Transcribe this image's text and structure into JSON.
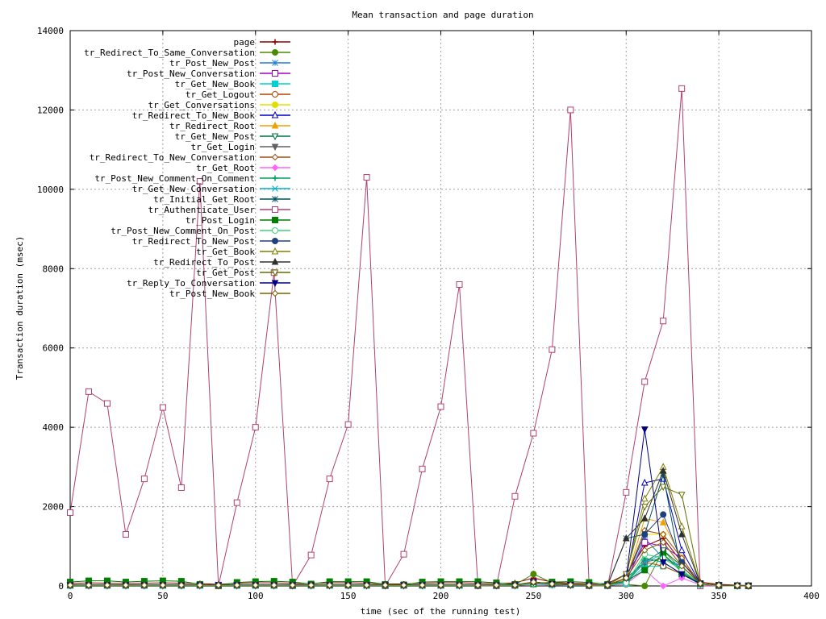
{
  "chart_data": {
    "type": "line",
    "title": "Mean transaction and page duration",
    "xlabel": "time (sec of the running test)",
    "ylabel": "Transaction duration (msec)",
    "xlim": [
      0,
      400
    ],
    "ylim": [
      0,
      14000
    ],
    "x_ticks": [
      0,
      50,
      100,
      150,
      200,
      250,
      300,
      350,
      400
    ],
    "y_ticks": [
      0,
      2000,
      4000,
      6000,
      8000,
      10000,
      12000,
      14000
    ],
    "grid": true,
    "legend_position": "top-left",
    "x": [
      0,
      10,
      20,
      30,
      40,
      50,
      60,
      70,
      80,
      90,
      100,
      110,
      120,
      130,
      140,
      150,
      160,
      170,
      180,
      190,
      200,
      210,
      220,
      230,
      240,
      250,
      260,
      270,
      280,
      290,
      300,
      310,
      320,
      330,
      340,
      350,
      360,
      366
    ],
    "series": [
      {
        "name": "page",
        "color": "#8b0000",
        "marker": "plus",
        "values": [
          60,
          80,
          70,
          60,
          70,
          80,
          70,
          60,
          40,
          70,
          80,
          80,
          60,
          60,
          80,
          80,
          70,
          50,
          50,
          70,
          80,
          80,
          70,
          60,
          80,
          200,
          100,
          70,
          60,
          60,
          300,
          1000,
          1200,
          600,
          100,
          40,
          20,
          10
        ]
      },
      {
        "name": "tr_Redirect_To_Same_Conversation",
        "color": "#4a8a00",
        "marker": "circle-filled",
        "values": [
          30,
          30,
          30,
          30,
          30,
          30,
          30,
          30,
          20,
          30,
          30,
          30,
          30,
          30,
          30,
          30,
          30,
          30,
          30,
          30,
          30,
          30,
          30,
          30,
          30,
          300,
          80,
          40,
          30,
          30,
          40,
          0,
          900,
          400,
          60,
          20,
          10,
          5
        ]
      },
      {
        "name": "tr_Post_New_Post",
        "color": "#1e7fd0",
        "marker": "asterisk",
        "values": [
          20,
          20,
          20,
          20,
          20,
          20,
          20,
          20,
          20,
          20,
          20,
          20,
          20,
          20,
          20,
          20,
          20,
          20,
          20,
          20,
          20,
          20,
          20,
          20,
          20,
          80,
          40,
          30,
          20,
          20,
          100,
          1200,
          700,
          500,
          50,
          20,
          10,
          5
        ]
      },
      {
        "name": "tr_Post_New_Conversation",
        "color": "#a000c0",
        "marker": "square-open",
        "values": [
          20,
          20,
          20,
          20,
          20,
          20,
          20,
          20,
          20,
          20,
          20,
          20,
          20,
          20,
          20,
          20,
          20,
          20,
          20,
          20,
          20,
          20,
          20,
          20,
          20,
          100,
          50,
          30,
          20,
          20,
          150,
          1100,
          1000,
          700,
          60,
          20,
          10,
          5
        ]
      },
      {
        "name": "tr_Get_New_Book",
        "color": "#00d0d0",
        "marker": "square-filled",
        "values": [
          10,
          10,
          10,
          10,
          10,
          10,
          10,
          10,
          10,
          10,
          10,
          10,
          10,
          10,
          10,
          10,
          10,
          10,
          10,
          10,
          10,
          10,
          10,
          10,
          10,
          60,
          30,
          20,
          10,
          10,
          60,
          500,
          500,
          300,
          40,
          10,
          5,
          5
        ]
      },
      {
        "name": "tr_Get_Logout",
        "color": "#b04000",
        "marker": "circle-open",
        "values": [
          10,
          10,
          10,
          10,
          10,
          10,
          10,
          10,
          10,
          10,
          10,
          10,
          10,
          10,
          10,
          10,
          10,
          10,
          10,
          10,
          10,
          10,
          10,
          10,
          10,
          50,
          30,
          20,
          10,
          10,
          80,
          600,
          500,
          300,
          40,
          10,
          5,
          5
        ]
      },
      {
        "name": "tr_Get_Conversations",
        "color": "#e0e000",
        "marker": "circle-filled",
        "values": [
          20,
          20,
          20,
          20,
          20,
          20,
          20,
          20,
          20,
          20,
          20,
          20,
          20,
          20,
          20,
          20,
          20,
          20,
          20,
          20,
          20,
          20,
          20,
          20,
          20,
          100,
          50,
          30,
          20,
          20,
          200,
          1300,
          1300,
          700,
          60,
          20,
          10,
          5
        ]
      },
      {
        "name": "tr_Redirect_To_New_Book",
        "color": "#0000c0",
        "marker": "triangle-open",
        "values": [
          20,
          20,
          20,
          20,
          20,
          20,
          20,
          20,
          20,
          20,
          20,
          20,
          20,
          20,
          20,
          20,
          20,
          20,
          20,
          20,
          20,
          20,
          20,
          20,
          20,
          100,
          50,
          30,
          20,
          20,
          200,
          2600,
          2700,
          900,
          60,
          20,
          10,
          5
        ]
      },
      {
        "name": "tr_Redirect_Root",
        "color": "#f0a000",
        "marker": "triangle-filled",
        "values": [
          10,
          10,
          10,
          10,
          10,
          10,
          10,
          10,
          10,
          10,
          10,
          10,
          10,
          10,
          10,
          10,
          10,
          10,
          10,
          10,
          10,
          10,
          10,
          10,
          10,
          60,
          30,
          20,
          10,
          10,
          150,
          1700,
          1600,
          700,
          50,
          10,
          5,
          5
        ]
      },
      {
        "name": "tr_Get_New_Post",
        "color": "#007040",
        "marker": "triangle-down-open",
        "values": [
          20,
          20,
          20,
          20,
          20,
          20,
          20,
          20,
          20,
          20,
          20,
          20,
          20,
          20,
          20,
          20,
          20,
          20,
          20,
          20,
          20,
          20,
          20,
          20,
          20,
          100,
          50,
          30,
          20,
          20,
          200,
          600,
          900,
          500,
          60,
          20,
          10,
          5
        ]
      },
      {
        "name": "tr_Get_Login",
        "color": "#606060",
        "marker": "triangle-down-filled",
        "values": [
          10,
          10,
          10,
          10,
          10,
          10,
          10,
          10,
          10,
          10,
          10,
          10,
          10,
          10,
          10,
          10,
          10,
          10,
          10,
          10,
          10,
          10,
          10,
          10,
          10,
          60,
          30,
          20,
          10,
          10,
          100,
          600,
          700,
          400,
          40,
          10,
          5,
          5
        ]
      },
      {
        "name": "tr_Redirect_To_New_Conversation",
        "color": "#a05010",
        "marker": "diamond-open",
        "values": [
          20,
          20,
          20,
          20,
          20,
          20,
          20,
          20,
          20,
          20,
          20,
          20,
          20,
          20,
          20,
          20,
          20,
          20,
          20,
          20,
          20,
          20,
          20,
          20,
          20,
          100,
          50,
          30,
          20,
          20,
          200,
          1400,
          1300,
          700,
          60,
          20,
          10,
          5
        ]
      },
      {
        "name": "tr_Get_Root",
        "color": "#ff60ff",
        "marker": "diamond-filled",
        "values": [
          10,
          10,
          10,
          10,
          10,
          10,
          10,
          10,
          10,
          10,
          10,
          10,
          10,
          10,
          10,
          10,
          10,
          10,
          10,
          10,
          10,
          10,
          10,
          10,
          10,
          40,
          20,
          10,
          10,
          10,
          50,
          400,
          0,
          200,
          30,
          10,
          5,
          5
        ]
      },
      {
        "name": "tr_Post_New_Comment_On_Comment",
        "color": "#00a060",
        "marker": "plus",
        "values": [
          10,
          10,
          10,
          10,
          10,
          10,
          10,
          10,
          10,
          10,
          10,
          10,
          10,
          10,
          10,
          10,
          10,
          10,
          10,
          10,
          10,
          10,
          10,
          10,
          10,
          60,
          30,
          20,
          10,
          10,
          80,
          700,
          600,
          300,
          40,
          10,
          5,
          5
        ]
      },
      {
        "name": "tr_Get_New_Conversation",
        "color": "#00b0d0",
        "marker": "cross",
        "values": [
          10,
          10,
          10,
          10,
          10,
          10,
          10,
          10,
          10,
          10,
          10,
          10,
          10,
          10,
          10,
          10,
          10,
          10,
          10,
          10,
          10,
          10,
          10,
          10,
          10,
          60,
          30,
          20,
          10,
          10,
          100,
          600,
          800,
          400,
          40,
          10,
          5,
          5
        ]
      },
      {
        "name": "tr_Initial_Get_Root",
        "color": "#005060",
        "marker": "asterisk",
        "values": [
          30,
          30,
          30,
          30,
          30,
          30,
          30,
          30,
          30,
          30,
          30,
          30,
          30,
          30,
          30,
          30,
          30,
          30,
          30,
          30,
          30,
          30,
          30,
          30,
          30,
          100,
          60,
          40,
          30,
          30,
          1200,
          1300,
          2800,
          300,
          60,
          20,
          10,
          5
        ]
      },
      {
        "name": "tr_Authenticate_User",
        "color": "#b04070",
        "marker": "square-open",
        "values": [
          1850,
          4900,
          4600,
          1300,
          2700,
          4500,
          2480,
          10200,
          0,
          2100,
          4000,
          7900,
          0,
          780,
          2700,
          4070,
          10300,
          0,
          800,
          2950,
          4520,
          7600,
          0,
          0,
          2260,
          3850,
          5960,
          12000,
          0,
          0,
          2360,
          5150,
          6680,
          12540,
          0,
          0,
          0,
          0
        ]
      },
      {
        "name": "tr_Post_Login",
        "color": "#008000",
        "marker": "square-filled",
        "values": [
          100,
          130,
          130,
          100,
          120,
          130,
          120,
          40,
          10,
          90,
          110,
          120,
          100,
          50,
          110,
          110,
          110,
          40,
          30,
          100,
          110,
          110,
          110,
          80,
          40,
          50,
          100,
          110,
          90,
          40,
          120,
          400,
          800,
          350,
          60,
          20,
          10,
          5
        ]
      },
      {
        "name": "tr_Post_New_Comment_On_Post",
        "color": "#40d080",
        "marker": "circle-open",
        "values": [
          10,
          10,
          10,
          10,
          10,
          10,
          10,
          10,
          10,
          10,
          10,
          10,
          10,
          10,
          10,
          10,
          10,
          10,
          10,
          10,
          10,
          10,
          10,
          10,
          10,
          60,
          30,
          20,
          10,
          10,
          80,
          800,
          700,
          400,
          40,
          10,
          5,
          5
        ]
      },
      {
        "name": "tr_Redirect_To_New_Post",
        "color": "#204080",
        "marker": "circle-filled",
        "values": [
          20,
          20,
          20,
          20,
          20,
          20,
          20,
          20,
          20,
          20,
          20,
          20,
          20,
          20,
          20,
          20,
          20,
          20,
          20,
          20,
          20,
          20,
          20,
          20,
          20,
          100,
          50,
          30,
          20,
          20,
          200,
          1300,
          1800,
          600,
          60,
          20,
          10,
          5
        ]
      },
      {
        "name": "tr_Get_Book",
        "color": "#808000",
        "marker": "triangle-open",
        "values": [
          20,
          20,
          20,
          20,
          20,
          20,
          20,
          20,
          20,
          20,
          20,
          20,
          20,
          20,
          20,
          20,
          20,
          20,
          20,
          20,
          20,
          20,
          20,
          20,
          20,
          100,
          50,
          30,
          20,
          20,
          300,
          2200,
          3000,
          1500,
          60,
          20,
          10,
          5
        ]
      },
      {
        "name": "tr_Redirect_To_Post",
        "color": "#303030",
        "marker": "triangle-filled",
        "values": [
          20,
          20,
          20,
          20,
          20,
          20,
          20,
          20,
          20,
          20,
          20,
          20,
          20,
          20,
          20,
          20,
          20,
          20,
          20,
          20,
          20,
          20,
          20,
          20,
          20,
          100,
          50,
          30,
          20,
          20,
          1200,
          1700,
          2900,
          1300,
          60,
          20,
          10,
          5
        ]
      },
      {
        "name": "tr_Get_Post",
        "color": "#607000",
        "marker": "triangle-down-open",
        "values": [
          20,
          20,
          20,
          20,
          20,
          20,
          20,
          20,
          20,
          20,
          20,
          20,
          20,
          20,
          20,
          20,
          20,
          20,
          20,
          20,
          20,
          20,
          20,
          20,
          20,
          100,
          50,
          30,
          20,
          20,
          300,
          2000,
          2500,
          2300,
          60,
          20,
          10,
          5
        ]
      },
      {
        "name": "tr_Reply_To_Conversation",
        "color": "#000080",
        "marker": "triangle-down-filled",
        "values": [
          20,
          20,
          20,
          20,
          20,
          20,
          20,
          20,
          20,
          20,
          20,
          20,
          20,
          20,
          20,
          20,
          20,
          20,
          20,
          20,
          20,
          20,
          20,
          20,
          20,
          100,
          50,
          30,
          20,
          20,
          200,
          3950,
          600,
          300,
          60,
          20,
          10,
          5
        ]
      },
      {
        "name": "tr_Post_New_Book",
        "color": "#806000",
        "marker": "diamond-open",
        "values": [
          20,
          20,
          20,
          20,
          20,
          20,
          20,
          20,
          20,
          20,
          20,
          20,
          20,
          20,
          20,
          20,
          20,
          20,
          20,
          20,
          20,
          20,
          20,
          20,
          20,
          100,
          50,
          30,
          20,
          20,
          200,
          900,
          1100,
          500,
          60,
          20,
          10,
          5
        ]
      }
    ]
  }
}
